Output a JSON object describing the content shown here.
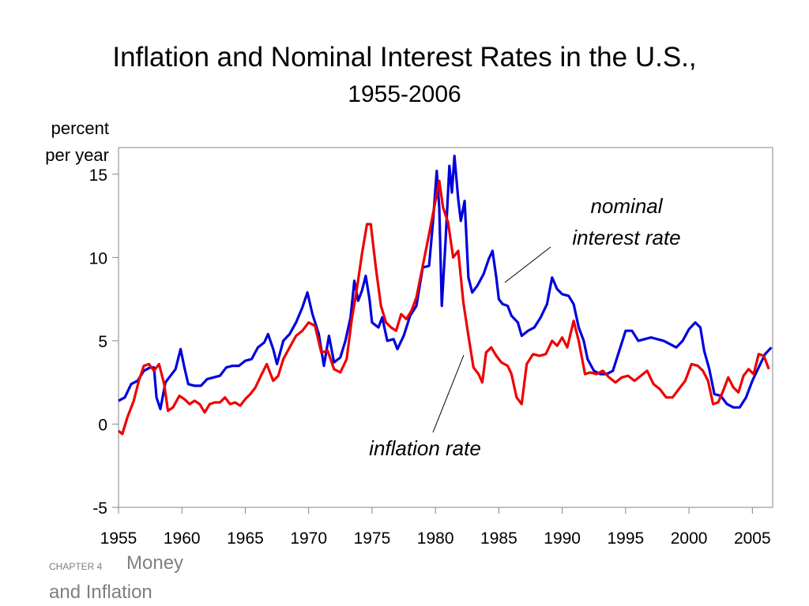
{
  "chart_data": {
    "type": "line",
    "title": "Inflation and Nominal Interest Rates in the U.S.,",
    "subtitle": "1955-2006",
    "ylabel_line1": "percent",
    "ylabel_line2": "per year",
    "xlim": [
      1955,
      2006.6
    ],
    "ylim": [
      -5,
      16.6
    ],
    "x_ticks": [
      1955,
      1960,
      1965,
      1970,
      1975,
      1980,
      1985,
      1990,
      1995,
      2000,
      2005
    ],
    "y_ticks": [
      -5,
      0,
      5,
      10,
      15
    ],
    "grid": false,
    "colors": {
      "nominal": "#0000dd",
      "inflation": "#ee0000"
    },
    "series": [
      {
        "name": "nominal interest rate",
        "color": "#0000dd",
        "points": [
          [
            1955,
            1.4
          ],
          [
            1955.5,
            1.6
          ],
          [
            1956,
            2.4
          ],
          [
            1956.5,
            2.6
          ],
          [
            1957,
            3.2
          ],
          [
            1957.5,
            3.4
          ],
          [
            1957.8,
            3.4
          ],
          [
            1958,
            1.6
          ],
          [
            1958.3,
            0.9
          ],
          [
            1958.7,
            2.5
          ],
          [
            1959,
            2.8
          ],
          [
            1959.5,
            3.3
          ],
          [
            1959.9,
            4.5
          ],
          [
            1960.2,
            3.4
          ],
          [
            1960.5,
            2.4
          ],
          [
            1961,
            2.3
          ],
          [
            1961.5,
            2.3
          ],
          [
            1962,
            2.7
          ],
          [
            1962.5,
            2.8
          ],
          [
            1963,
            2.9
          ],
          [
            1963.5,
            3.4
          ],
          [
            1964,
            3.5
          ],
          [
            1964.5,
            3.5
          ],
          [
            1965,
            3.8
          ],
          [
            1965.5,
            3.9
          ],
          [
            1966,
            4.6
          ],
          [
            1966.5,
            4.9
          ],
          [
            1966.8,
            5.4
          ],
          [
            1967.2,
            4.5
          ],
          [
            1967.5,
            3.6
          ],
          [
            1968,
            5.0
          ],
          [
            1968.5,
            5.4
          ],
          [
            1969,
            6.1
          ],
          [
            1969.5,
            7.0
          ],
          [
            1969.9,
            7.9
          ],
          [
            1970.3,
            6.6
          ],
          [
            1970.8,
            5.4
          ],
          [
            1971.2,
            3.5
          ],
          [
            1971.6,
            5.3
          ],
          [
            1972,
            3.7
          ],
          [
            1972.5,
            4.0
          ],
          [
            1972.9,
            5.0
          ],
          [
            1973.3,
            6.4
          ],
          [
            1973.6,
            8.6
          ],
          [
            1973.9,
            7.4
          ],
          [
            1974.2,
            8.0
          ],
          [
            1974.5,
            8.9
          ],
          [
            1974.8,
            7.5
          ],
          [
            1975,
            6.1
          ],
          [
            1975.5,
            5.8
          ],
          [
            1975.8,
            6.4
          ],
          [
            1976.2,
            5.0
          ],
          [
            1976.7,
            5.1
          ],
          [
            1977,
            4.5
          ],
          [
            1977.5,
            5.3
          ],
          [
            1978,
            6.5
          ],
          [
            1978.5,
            7.1
          ],
          [
            1979,
            9.4
          ],
          [
            1979.5,
            9.5
          ],
          [
            1979.8,
            12.1
          ],
          [
            1980.1,
            15.2
          ],
          [
            1980.3,
            13.0
          ],
          [
            1980.5,
            7.1
          ],
          [
            1980.8,
            11.0
          ],
          [
            1981.1,
            15.5
          ],
          [
            1981.3,
            13.9
          ],
          [
            1981.5,
            16.1
          ],
          [
            1981.8,
            13.5
          ],
          [
            1982,
            12.2
          ],
          [
            1982.3,
            13.4
          ],
          [
            1982.6,
            8.8
          ],
          [
            1982.9,
            7.9
          ],
          [
            1983.3,
            8.3
          ],
          [
            1983.8,
            9.0
          ],
          [
            1984.2,
            9.9
          ],
          [
            1984.5,
            10.4
          ],
          [
            1984.8,
            8.8
          ],
          [
            1985,
            7.5
          ],
          [
            1985.3,
            7.2
          ],
          [
            1985.7,
            7.1
          ],
          [
            1986,
            6.5
          ],
          [
            1986.5,
            6.1
          ],
          [
            1986.8,
            5.3
          ],
          [
            1987.3,
            5.6
          ],
          [
            1987.8,
            5.8
          ],
          [
            1988.3,
            6.4
          ],
          [
            1988.8,
            7.2
          ],
          [
            1989.2,
            8.8
          ],
          [
            1989.6,
            8.1
          ],
          [
            1990,
            7.8
          ],
          [
            1990.5,
            7.7
          ],
          [
            1990.9,
            7.2
          ],
          [
            1991.3,
            5.8
          ],
          [
            1991.7,
            5.0
          ],
          [
            1992,
            3.9
          ],
          [
            1992.5,
            3.2
          ],
          [
            1993,
            3.0
          ],
          [
            1993.5,
            3.0
          ],
          [
            1994,
            3.2
          ],
          [
            1994.5,
            4.4
          ],
          [
            1995,
            5.6
          ],
          [
            1995.5,
            5.6
          ],
          [
            1996,
            5.0
          ],
          [
            1996.5,
            5.1
          ],
          [
            1997,
            5.2
          ],
          [
            1997.5,
            5.1
          ],
          [
            1998,
            5.0
          ],
          [
            1998.5,
            4.8
          ],
          [
            1999,
            4.6
          ],
          [
            1999.5,
            5.0
          ],
          [
            2000,
            5.7
          ],
          [
            2000.5,
            6.1
          ],
          [
            2000.9,
            5.8
          ],
          [
            2001.2,
            4.4
          ],
          [
            2001.6,
            3.3
          ],
          [
            2002,
            1.8
          ],
          [
            2002.5,
            1.7
          ],
          [
            2003,
            1.2
          ],
          [
            2003.5,
            1.0
          ],
          [
            2004,
            1.0
          ],
          [
            2004.5,
            1.6
          ],
          [
            2005,
            2.6
          ],
          [
            2005.5,
            3.4
          ],
          [
            2006,
            4.2
          ],
          [
            2006.5,
            4.6
          ]
        ]
      },
      {
        "name": "inflation rate",
        "color": "#ee0000",
        "points": [
          [
            1955,
            -0.4
          ],
          [
            1955.3,
            -0.6
          ],
          [
            1955.7,
            0.4
          ],
          [
            1956.2,
            1.4
          ],
          [
            1956.6,
            2.6
          ],
          [
            1957,
            3.5
          ],
          [
            1957.4,
            3.6
          ],
          [
            1957.8,
            3.2
          ],
          [
            1958.2,
            3.6
          ],
          [
            1958.6,
            2.4
          ],
          [
            1958.9,
            0.8
          ],
          [
            1959.3,
            1.0
          ],
          [
            1959.8,
            1.7
          ],
          [
            1960.2,
            1.5
          ],
          [
            1960.6,
            1.2
          ],
          [
            1961,
            1.4
          ],
          [
            1961.4,
            1.2
          ],
          [
            1961.8,
            0.7
          ],
          [
            1962.2,
            1.2
          ],
          [
            1962.6,
            1.3
          ],
          [
            1963,
            1.3
          ],
          [
            1963.4,
            1.6
          ],
          [
            1963.8,
            1.2
          ],
          [
            1964.2,
            1.3
          ],
          [
            1964.6,
            1.1
          ],
          [
            1965,
            1.5
          ],
          [
            1965.4,
            1.8
          ],
          [
            1965.8,
            2.2
          ],
          [
            1966.3,
            3.0
          ],
          [
            1966.7,
            3.6
          ],
          [
            1967.2,
            2.6
          ],
          [
            1967.6,
            2.9
          ],
          [
            1968,
            3.9
          ],
          [
            1968.5,
            4.6
          ],
          [
            1969,
            5.3
          ],
          [
            1969.5,
            5.6
          ],
          [
            1970,
            6.1
          ],
          [
            1970.5,
            5.9
          ],
          [
            1971,
            4.3
          ],
          [
            1971.5,
            4.4
          ],
          [
            1972,
            3.3
          ],
          [
            1972.5,
            3.1
          ],
          [
            1973,
            3.9
          ],
          [
            1973.4,
            6.3
          ],
          [
            1973.8,
            8.1
          ],
          [
            1974.2,
            10.2
          ],
          [
            1974.6,
            12.0
          ],
          [
            1974.9,
            12.0
          ],
          [
            1975.3,
            9.4
          ],
          [
            1975.7,
            7.1
          ],
          [
            1976.1,
            6.1
          ],
          [
            1976.5,
            5.8
          ],
          [
            1976.9,
            5.6
          ],
          [
            1977.3,
            6.6
          ],
          [
            1977.7,
            6.3
          ],
          [
            1978.1,
            6.8
          ],
          [
            1978.5,
            7.6
          ],
          [
            1979,
            9.5
          ],
          [
            1979.5,
            11.4
          ],
          [
            1980,
            13.4
          ],
          [
            1980.3,
            14.6
          ],
          [
            1980.6,
            13.0
          ],
          [
            1981,
            12.1
          ],
          [
            1981.4,
            10.0
          ],
          [
            1981.8,
            10.4
          ],
          [
            1982.2,
            7.3
          ],
          [
            1982.6,
            5.3
          ],
          [
            1983,
            3.4
          ],
          [
            1983.4,
            3.0
          ],
          [
            1983.7,
            2.5
          ],
          [
            1984,
            4.3
          ],
          [
            1984.4,
            4.6
          ],
          [
            1984.8,
            4.1
          ],
          [
            1985.2,
            3.7
          ],
          [
            1985.7,
            3.5
          ],
          [
            1986,
            3.0
          ],
          [
            1986.4,
            1.6
          ],
          [
            1986.8,
            1.2
          ],
          [
            1987.2,
            3.6
          ],
          [
            1987.7,
            4.2
          ],
          [
            1988.2,
            4.1
          ],
          [
            1988.7,
            4.2
          ],
          [
            1989.2,
            5.0
          ],
          [
            1989.6,
            4.7
          ],
          [
            1990,
            5.2
          ],
          [
            1990.4,
            4.6
          ],
          [
            1990.9,
            6.2
          ],
          [
            1991.3,
            5.0
          ],
          [
            1991.8,
            3.0
          ],
          [
            1992.2,
            3.1
          ],
          [
            1992.7,
            3.0
          ],
          [
            1993.2,
            3.2
          ],
          [
            1993.7,
            2.8
          ],
          [
            1994.2,
            2.5
          ],
          [
            1994.7,
            2.8
          ],
          [
            1995.2,
            2.9
          ],
          [
            1995.7,
            2.6
          ],
          [
            1996.2,
            2.9
          ],
          [
            1996.7,
            3.2
          ],
          [
            1997.2,
            2.4
          ],
          [
            1997.7,
            2.1
          ],
          [
            1998.2,
            1.6
          ],
          [
            1998.7,
            1.6
          ],
          [
            1999.2,
            2.1
          ],
          [
            1999.7,
            2.6
          ],
          [
            2000.2,
            3.6
          ],
          [
            2000.7,
            3.5
          ],
          [
            2001.1,
            3.2
          ],
          [
            2001.5,
            2.6
          ],
          [
            2001.9,
            1.2
          ],
          [
            2002.3,
            1.3
          ],
          [
            2002.7,
            2.0
          ],
          [
            2003.1,
            2.8
          ],
          [
            2003.5,
            2.2
          ],
          [
            2003.9,
            1.9
          ],
          [
            2004.3,
            2.9
          ],
          [
            2004.7,
            3.3
          ],
          [
            2005.1,
            3.0
          ],
          [
            2005.5,
            4.2
          ],
          [
            2005.9,
            4.1
          ],
          [
            2006.3,
            3.3
          ]
        ]
      }
    ],
    "annotations": {
      "nominal_line1": "nominal",
      "nominal_line2": "interest rate",
      "inflation_label": "inflation rate"
    }
  },
  "footer": {
    "chapter": "CHAPTER 4",
    "title_part1": "Money",
    "title_part2": "and Inflation"
  }
}
